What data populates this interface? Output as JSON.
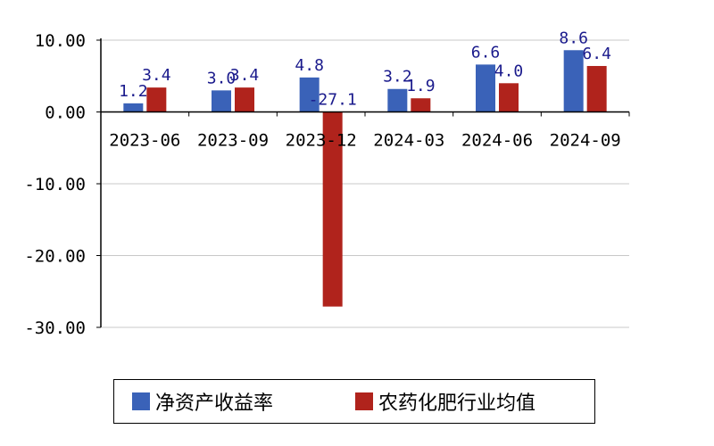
{
  "chart_data": {
    "type": "bar",
    "categories": [
      "2023-06",
      "2023-09",
      "2023-12",
      "2024-03",
      "2024-06",
      "2024-09"
    ],
    "series": [
      {
        "name": "净资产收益率",
        "values": [
          1.2,
          3.0,
          4.8,
          3.2,
          6.6,
          8.6
        ],
        "labels": [
          "1.2",
          "3.0",
          "4.8",
          "3.2",
          "6.6",
          "8.6"
        ],
        "color": "#3a62b8"
      },
      {
        "name": "农药化肥行业均值",
        "values": [
          3.4,
          3.4,
          -27.1,
          1.9,
          4.0,
          6.4
        ],
        "labels": [
          "3.4",
          "3.4",
          "-27.1",
          "1.9",
          "4.0",
          "6.4"
        ],
        "color": "#b0231c"
      }
    ],
    "yticks": [
      "10.00",
      "0.00",
      "-10.00",
      "-20.00",
      "-30.00"
    ],
    "ytick_values": [
      10,
      0,
      -10,
      -20,
      -30
    ],
    "ylim": [
      -30,
      10
    ],
    "grid": true,
    "legend_position": "bottom",
    "title": "",
    "xlabel": "",
    "ylabel": ""
  }
}
